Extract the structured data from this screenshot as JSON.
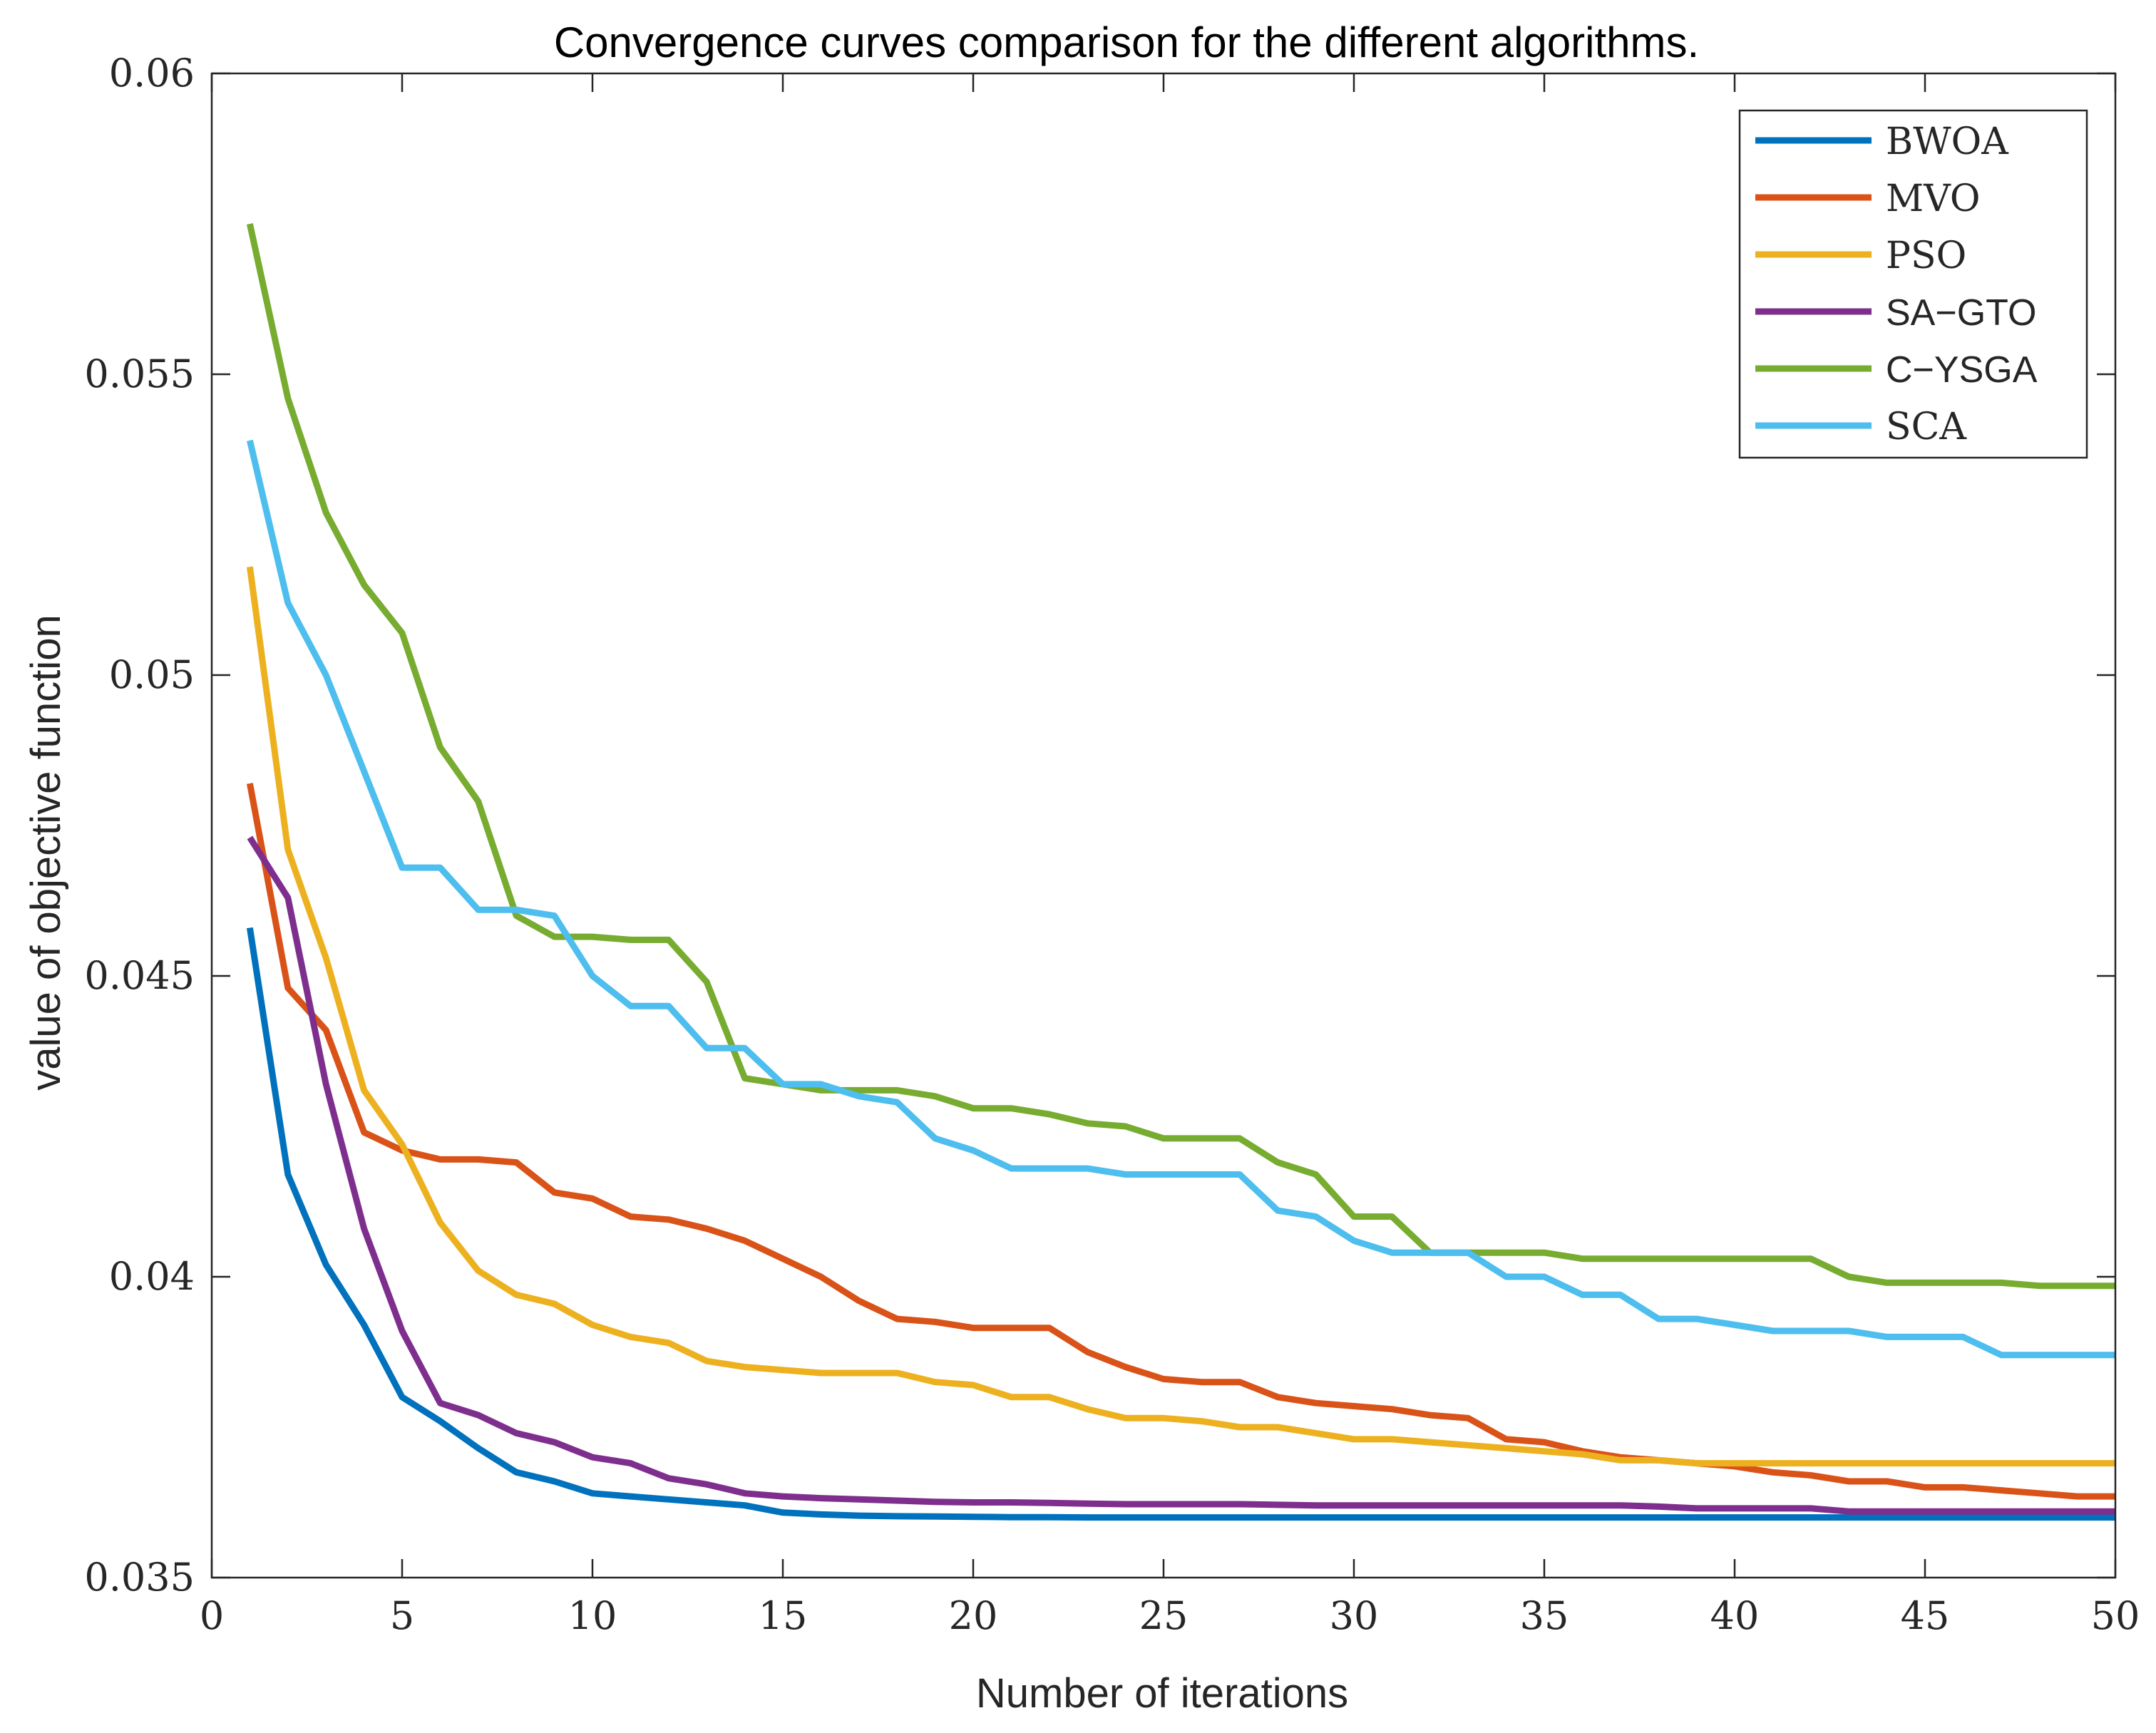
{
  "chart_data": {
    "type": "line",
    "title": "Convergence curves comparison for the different algorithms.",
    "xlabel": "Number of iterations",
    "ylabel": "value of objective function",
    "xlim": [
      0,
      50
    ],
    "ylim": [
      0.035,
      0.06
    ],
    "xticks": [
      0,
      5,
      10,
      15,
      20,
      25,
      30,
      35,
      40,
      45,
      50
    ],
    "xtick_labels": [
      "0",
      "5",
      "10",
      "15",
      "20",
      "25",
      "30",
      "35",
      "40",
      "45",
      "50"
    ],
    "yticks": [
      0.035,
      0.04,
      0.045,
      0.05,
      0.055,
      0.06
    ],
    "ytick_labels": [
      "0.035",
      "0.04",
      "0.045",
      "0.05",
      "0.055",
      "0.06"
    ],
    "grid": false,
    "legend_position": "top-right",
    "x": [
      1,
      2,
      3,
      4,
      5,
      6,
      7,
      8,
      9,
      10,
      11,
      12,
      13,
      14,
      15,
      16,
      17,
      18,
      19,
      20,
      21,
      22,
      23,
      24,
      25,
      26,
      27,
      28,
      29,
      30,
      31,
      32,
      33,
      34,
      35,
      36,
      37,
      38,
      39,
      40,
      41,
      42,
      43,
      44,
      45,
      46,
      47,
      48,
      49,
      50
    ],
    "series": [
      {
        "name": "BWOA",
        "color": "#0072BD",
        "values": [
          0.0458,
          0.0417,
          0.0402,
          0.0392,
          0.038,
          0.0376,
          0.03715,
          0.03675,
          0.0366,
          0.0364,
          0.03635,
          0.0363,
          0.03625,
          0.0362,
          0.03608,
          0.03605,
          0.03603,
          0.03602,
          0.036015,
          0.03601,
          0.036005,
          0.036005,
          0.036,
          0.036,
          0.036,
          0.036,
          0.036,
          0.036,
          0.036,
          0.036,
          0.036,
          0.036,
          0.036,
          0.036,
          0.036,
          0.036,
          0.036,
          0.036,
          0.036,
          0.036,
          0.036,
          0.036,
          0.036,
          0.036,
          0.036,
          0.036,
          0.036,
          0.036,
          0.036,
          0.036
        ]
      },
      {
        "name": "MVO",
        "color": "#D95319",
        "values": [
          0.0482,
          0.0448,
          0.0441,
          0.0424,
          0.0421,
          0.04195,
          0.04195,
          0.0419,
          0.0414,
          0.0413,
          0.041,
          0.04095,
          0.0408,
          0.0406,
          0.0403,
          0.04,
          0.0396,
          0.0393,
          0.03925,
          0.03915,
          0.03915,
          0.03915,
          0.03875,
          0.0385,
          0.0383,
          0.03825,
          0.03825,
          0.038,
          0.0379,
          0.03785,
          0.0378,
          0.0377,
          0.03765,
          0.0373,
          0.03725,
          0.0371,
          0.037,
          0.03695,
          0.0369,
          0.03685,
          0.03675,
          0.0367,
          0.0366,
          0.0366,
          0.0365,
          0.0365,
          0.03645,
          0.0364,
          0.03635,
          0.03635
        ]
      },
      {
        "name": "PSO",
        "color": "#EDB120",
        "values": [
          0.0518,
          0.0471,
          0.0453,
          0.0431,
          0.0422,
          0.0409,
          0.0401,
          0.0397,
          0.03955,
          0.0392,
          0.039,
          0.0389,
          0.0386,
          0.0385,
          0.03845,
          0.0384,
          0.0384,
          0.0384,
          0.03825,
          0.0382,
          0.038,
          0.038,
          0.0378,
          0.03765,
          0.03765,
          0.0376,
          0.0375,
          0.0375,
          0.0374,
          0.0373,
          0.0373,
          0.03725,
          0.0372,
          0.03715,
          0.0371,
          0.03705,
          0.03695,
          0.03695,
          0.0369,
          0.0369,
          0.0369,
          0.0369,
          0.0369,
          0.0369,
          0.0369,
          0.0369,
          0.0369,
          0.0369,
          0.0369,
          0.0369
        ]
      },
      {
        "name": "SA−GTO",
        "color": "#7E2F8E",
        "values": [
          0.0473,
          0.0463,
          0.0432,
          0.0408,
          0.0391,
          0.0379,
          0.0377,
          0.0374,
          0.03725,
          0.037,
          0.0369,
          0.03665,
          0.03655,
          0.0364,
          0.03635,
          0.03632,
          0.0363,
          0.03628,
          0.03626,
          0.03625,
          0.03625,
          0.03624,
          0.03623,
          0.03622,
          0.03622,
          0.03622,
          0.03622,
          0.03621,
          0.0362,
          0.0362,
          0.0362,
          0.0362,
          0.0362,
          0.0362,
          0.0362,
          0.0362,
          0.0362,
          0.03618,
          0.03615,
          0.03615,
          0.03615,
          0.03615,
          0.0361,
          0.0361,
          0.0361,
          0.0361,
          0.0361,
          0.0361,
          0.0361,
          0.0361
        ]
      },
      {
        "name": "C−YSGA",
        "color": "#77AC30",
        "values": [
          0.0575,
          0.0546,
          0.0527,
          0.0515,
          0.0507,
          0.0488,
          0.0479,
          0.046,
          0.04565,
          0.04565,
          0.0456,
          0.0456,
          0.0449,
          0.0433,
          0.0432,
          0.0431,
          0.0431,
          0.0431,
          0.043,
          0.0428,
          0.0428,
          0.0427,
          0.04255,
          0.0425,
          0.0423,
          0.0423,
          0.0423,
          0.0419,
          0.0417,
          0.041,
          0.041,
          0.0404,
          0.0404,
          0.0404,
          0.0404,
          0.0403,
          0.0403,
          0.0403,
          0.0403,
          0.0403,
          0.0403,
          0.0403,
          0.04,
          0.0399,
          0.0399,
          0.0399,
          0.0399,
          0.03985,
          0.03985,
          0.03985
        ]
      },
      {
        "name": "SCA",
        "color": "#4DBEEE",
        "values": [
          0.0539,
          0.0512,
          0.05,
          0.0484,
          0.0468,
          0.0468,
          0.0461,
          0.0461,
          0.046,
          0.045,
          0.0445,
          0.0445,
          0.0438,
          0.0438,
          0.0432,
          0.0432,
          0.043,
          0.0429,
          0.0423,
          0.0421,
          0.0418,
          0.0418,
          0.0418,
          0.0417,
          0.0417,
          0.0417,
          0.0417,
          0.0411,
          0.041,
          0.0406,
          0.0404,
          0.0404,
          0.0404,
          0.04,
          0.04,
          0.0397,
          0.0397,
          0.0393,
          0.0393,
          0.0392,
          0.0391,
          0.0391,
          0.0391,
          0.039,
          0.039,
          0.039,
          0.0387,
          0.0387,
          0.0387,
          0.0387
        ]
      }
    ]
  }
}
